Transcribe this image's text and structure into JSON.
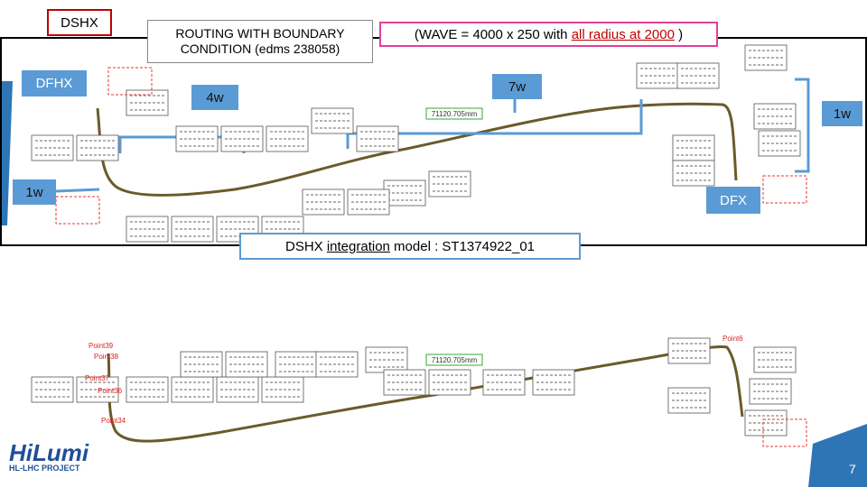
{
  "labels": {
    "dshx": "DSHX",
    "routing": "ROUTING WITH BOUNDARY CONDITION (edms 238058)",
    "wave": {
      "prefix": "(WAVE = 4000 x 250 with ",
      "highlight": "all radius at 2000",
      "suffix": " )"
    },
    "dfhx": "DFHX",
    "four_w": "4w",
    "seven_w": "7w",
    "one_w_right": "1w",
    "one_w_left": "1w",
    "dfx": "DFX",
    "model": {
      "prefix": "DSHX ",
      "underlined": "integration",
      "suffix": " model : ST1374922_01"
    }
  },
  "drawing": {
    "dimension_top": "71120.705mm",
    "dimension_bottom": "71120.705mm",
    "points": [
      "Point39",
      "Point38",
      "Point37",
      "Point36",
      "Point34",
      "Point6"
    ]
  },
  "footer": {
    "logo": "HiLumi",
    "project": "HL-LHC PROJECT",
    "page": "7"
  }
}
